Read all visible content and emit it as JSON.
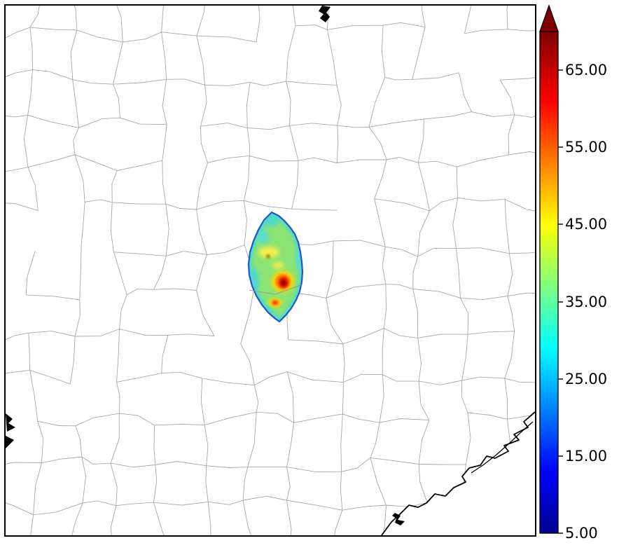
{
  "figure": {
    "kind": "county map with shaded data region and vertical colorbar",
    "background": "#ffffff"
  },
  "map": {
    "county_line_color": "#a8a8a8",
    "frame_color": "#000000",
    "coast_color": "#000000",
    "region_outline_color": "#1B56D0",
    "region_colors": {
      "base": "#8CE472",
      "cool": "#4FD9CC",
      "cool2": "#5ADFC8",
      "yellow": "#EFF04A",
      "olive": "#A08000",
      "hot_yellow": "#FFD900",
      "hot_orange": "#FF8000",
      "hot_red": "#E31400",
      "hot_core": "#8F0000"
    }
  },
  "colorbar": {
    "min": 5,
    "max": 70,
    "over_arrow_color": "#7F0000",
    "gradient_stops": [
      {
        "value": 5,
        "color": "#00008F"
      },
      {
        "value": 13,
        "color": "#0000FF"
      },
      {
        "value": 29,
        "color": "#00FFFF"
      },
      {
        "value": 45,
        "color": "#FFFF00"
      },
      {
        "value": 61,
        "color": "#FF0000"
      },
      {
        "value": 70,
        "color": "#7F0000"
      }
    ],
    "ticks": [
      {
        "value": 65,
        "label": "65.00"
      },
      {
        "value": 55,
        "label": "55.00"
      },
      {
        "value": 45,
        "label": "45.00"
      },
      {
        "value": 35,
        "label": "35.00"
      },
      {
        "value": 25,
        "label": "25.00"
      },
      {
        "value": 15,
        "label": "15.00"
      },
      {
        "value": 5,
        "label": "5.00"
      }
    ]
  },
  "chart_data": {
    "type": "heatmap",
    "title": "",
    "colorbar": {
      "orientation": "vertical",
      "position": "right",
      "range": [
        5,
        70
      ],
      "colormap": "jet",
      "over_color": "#7F0000",
      "tick_values": [
        65,
        55,
        45,
        35,
        25,
        15,
        5
      ],
      "tick_labels": [
        "65.00",
        "55.00",
        "45.00",
        "35.00",
        "25.00",
        "15.00",
        "5.00"
      ]
    },
    "region_values": {
      "shaded_region_typical": 37,
      "cool_patches": 30,
      "yellow_patches": 45,
      "secondary_hotspot_peak": 55,
      "primary_hotspot_peak": 65
    }
  }
}
